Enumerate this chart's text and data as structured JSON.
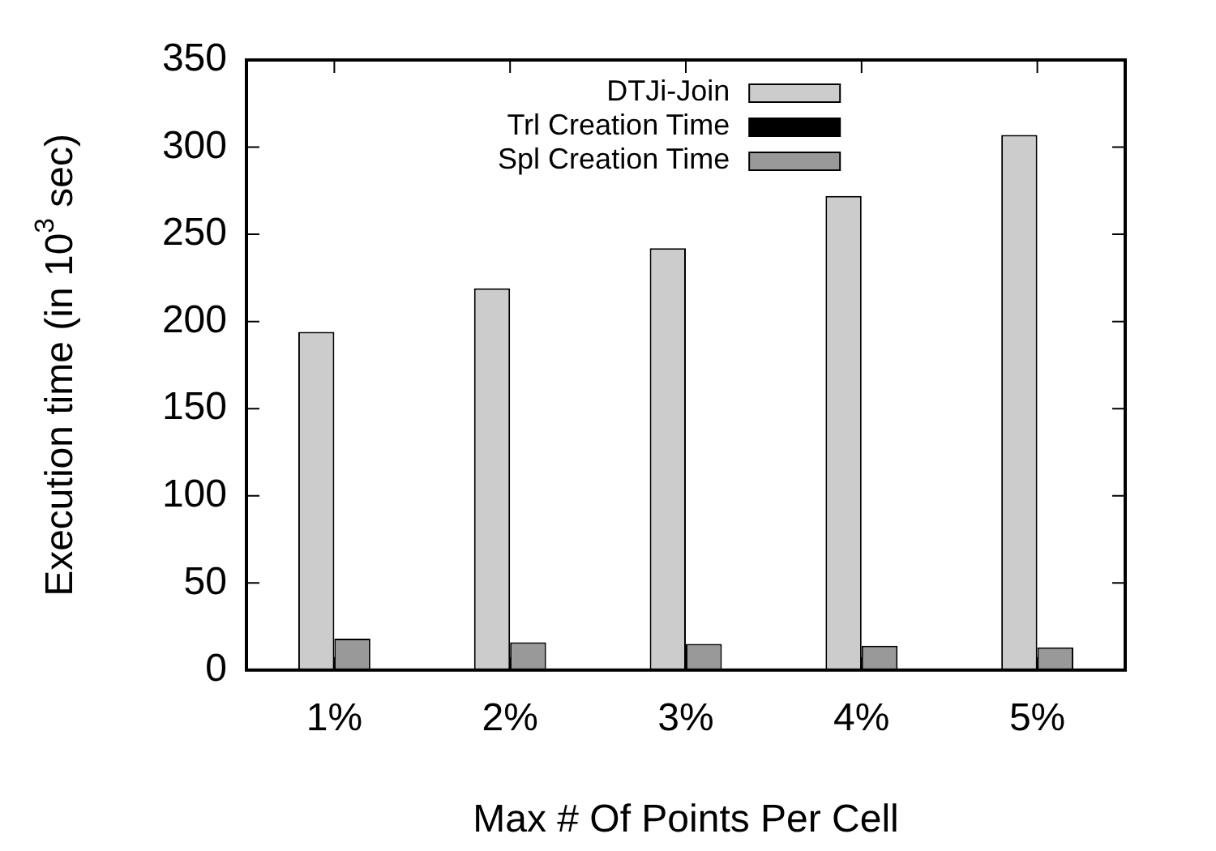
{
  "chart_data": {
    "type": "bar",
    "xlabel": "Max # Of Points Per Cell",
    "ylabel": "Execution time (in 10$^{3}$ sec)",
    "categories": [
      "1%",
      "2%",
      "3%",
      "4%",
      "5%"
    ],
    "series": [
      {
        "name": "DTJi-Join",
        "color": "#cccccc",
        "values": [
          194,
          219,
          242,
          272,
          307
        ]
      },
      {
        "name": "Trl Creation Time",
        "color": "#000000",
        "values": [
          null,
          null,
          null,
          null,
          null
        ]
      },
      {
        "name": "Spl Creation Time",
        "color": "#999999",
        "values": [
          18,
          16,
          15,
          14,
          13
        ]
      }
    ],
    "ylim": [
      0,
      350
    ],
    "yticks": [
      0,
      50,
      100,
      150,
      200,
      250,
      300,
      350
    ],
    "grid": false,
    "legend": "top"
  }
}
